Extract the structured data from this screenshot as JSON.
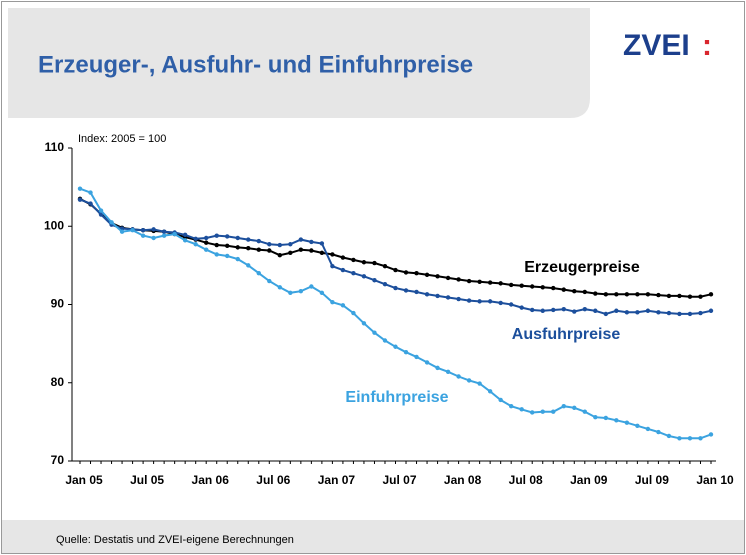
{
  "header": {
    "title": "Erzeuger-, Ausfuhr- und Einfuhrpreise",
    "logo": "ZVEI",
    "logo_mark": ":"
  },
  "footer": {
    "source": "Quelle: Destatis und ZVEI-eigene Berechnungen"
  },
  "chart_data": {
    "type": "line",
    "subtitle": "Index: 2005 = 100",
    "categories": [
      "Jan 05",
      null,
      null,
      null,
      null,
      null,
      "Jul 05",
      null,
      null,
      null,
      null,
      null,
      "Jan 06",
      null,
      null,
      null,
      null,
      null,
      "Jul 06",
      null,
      null,
      null,
      null,
      null,
      "Jan 07",
      null,
      null,
      null,
      null,
      null,
      "Jul 07",
      null,
      null,
      null,
      null,
      null,
      "Jan 08",
      null,
      null,
      null,
      null,
      null,
      "Jul 08",
      null,
      null,
      null,
      null,
      null,
      "Jan 09",
      null,
      null,
      null,
      null,
      null,
      "Jul 09",
      null,
      null,
      null,
      null,
      null,
      "Jan 10"
    ],
    "series": [
      {
        "name": "Erzeugerpreise",
        "color": "#000000",
        "values": [
          103.5,
          102.8,
          101.6,
          100.4,
          99.8,
          99.6,
          99.5,
          99.4,
          99.3,
          99.0,
          98.6,
          98.3,
          97.9,
          97.6,
          97.5,
          97.3,
          97.2,
          97.0,
          96.9,
          96.3,
          96.6,
          97.0,
          96.9,
          96.6,
          96.4,
          96.0,
          95.7,
          95.4,
          95.3,
          94.9,
          94.4,
          94.1,
          94.0,
          93.8,
          93.6,
          93.4,
          93.2,
          93.0,
          92.9,
          92.8,
          92.7,
          92.5,
          92.4,
          92.3,
          92.2,
          92.1,
          91.9,
          91.7,
          91.6,
          91.4,
          91.3,
          91.3,
          91.3,
          91.3,
          91.3,
          91.2,
          91.1,
          91.1,
          91.0,
          91.0,
          91.3
        ]
      },
      {
        "name": "Ausfuhrpreise",
        "color": "#1c4f9c",
        "values": [
          103.4,
          102.9,
          101.5,
          100.2,
          99.7,
          99.6,
          99.5,
          99.6,
          99.3,
          99.2,
          98.9,
          98.4,
          98.5,
          98.8,
          98.7,
          98.5,
          98.3,
          98.1,
          97.7,
          97.6,
          97.7,
          98.3,
          98.0,
          97.8,
          94.9,
          94.4,
          94.0,
          93.6,
          93.1,
          92.6,
          92.1,
          91.8,
          91.6,
          91.3,
          91.1,
          90.9,
          90.7,
          90.5,
          90.4,
          90.4,
          90.2,
          90.0,
          89.6,
          89.3,
          89.2,
          89.3,
          89.4,
          89.1,
          89.4,
          89.2,
          88.8,
          89.2,
          89.0,
          89.0,
          89.2,
          89.0,
          88.9,
          88.8,
          88.8,
          88.9,
          89.2
        ]
      },
      {
        "name": "Einfuhrpreise",
        "color": "#3ba3e0",
        "values": [
          104.8,
          104.3,
          102.0,
          100.5,
          99.3,
          99.5,
          98.8,
          98.5,
          98.8,
          99.0,
          98.2,
          97.7,
          97.0,
          96.4,
          96.2,
          95.8,
          95.0,
          94.0,
          93.0,
          92.2,
          91.5,
          91.7,
          92.3,
          91.5,
          90.3,
          89.9,
          88.9,
          87.6,
          86.4,
          85.4,
          84.6,
          83.9,
          83.3,
          82.6,
          81.9,
          81.4,
          80.8,
          80.3,
          79.9,
          78.9,
          77.8,
          77.0,
          76.6,
          76.2,
          76.3,
          76.3,
          77.0,
          76.8,
          76.3,
          75.6,
          75.5,
          75.2,
          74.9,
          74.5,
          74.1,
          73.7,
          73.2,
          72.9,
          72.9,
          72.9,
          73.4
        ]
      }
    ],
    "ylim": [
      70,
      110
    ],
    "yticks": [
      70,
      80,
      90,
      100,
      110
    ],
    "grid": false
  }
}
